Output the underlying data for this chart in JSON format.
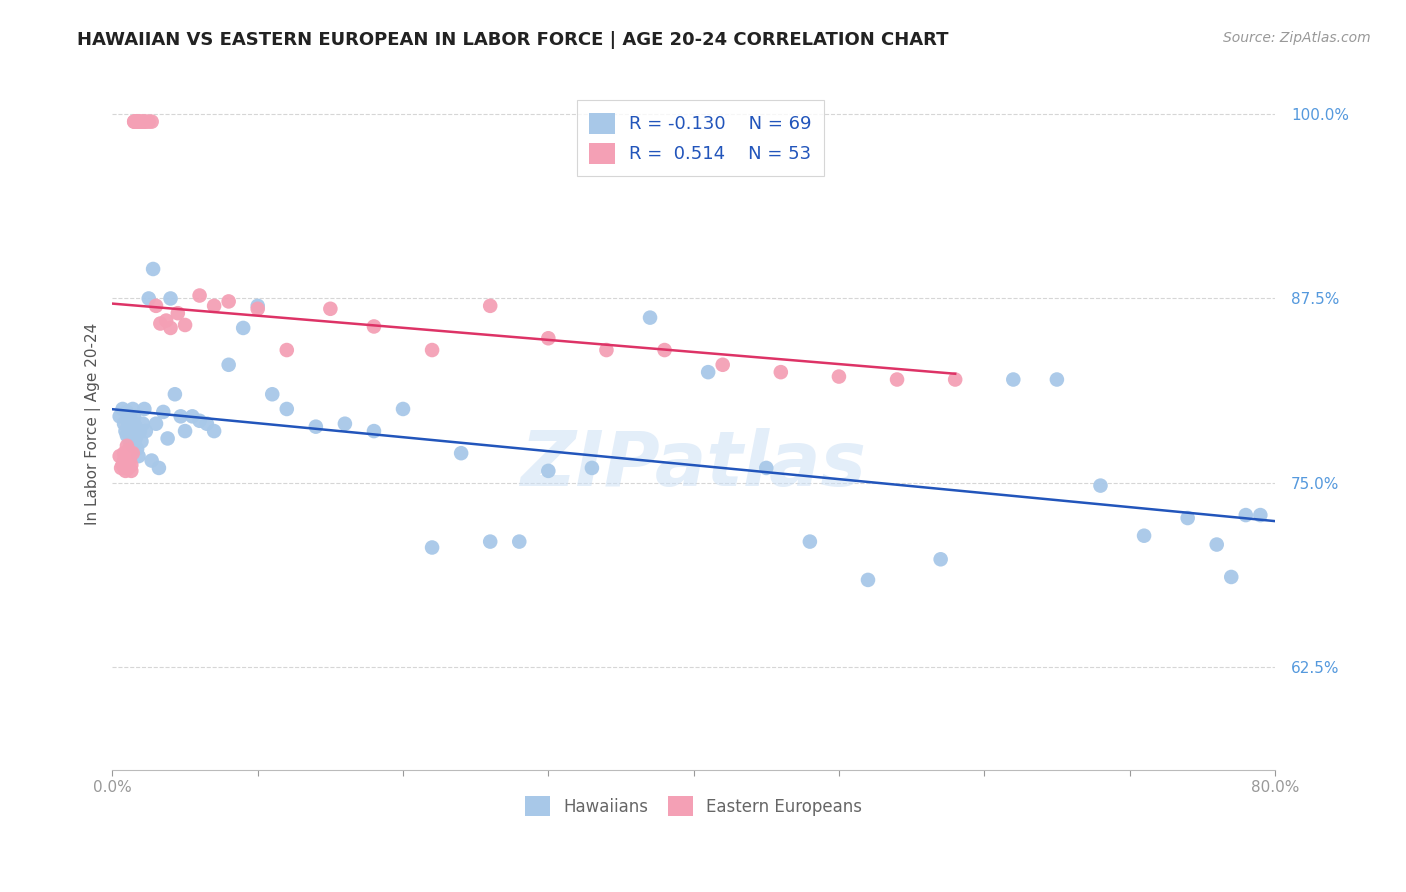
{
  "title": "HAWAIIAN VS EASTERN EUROPEAN IN LABOR FORCE | AGE 20-24 CORRELATION CHART",
  "source": "Source: ZipAtlas.com",
  "ylabel": "In Labor Force | Age 20-24",
  "x_min": 0.0,
  "x_max": 0.8,
  "y_min": 0.555,
  "y_max": 1.025,
  "x_ticks": [
    0.0,
    0.1,
    0.2,
    0.3,
    0.4,
    0.5,
    0.6,
    0.7,
    0.8
  ],
  "x_tick_labels": [
    "0.0%",
    "",
    "",
    "",
    "",
    "",
    "",
    "",
    "80.0%"
  ],
  "y_ticks": [
    0.625,
    0.75,
    0.875,
    1.0
  ],
  "y_tick_labels": [
    "62.5%",
    "75.0%",
    "87.5%",
    "100.0%"
  ],
  "hawaiian_color": "#a8c8e8",
  "eastern_color": "#f4a0b5",
  "hawaiian_line_color": "#2255bb",
  "eastern_line_color": "#dd3366",
  "background_color": "#ffffff",
  "grid_color": "#cccccc",
  "legend_R_hawaiian": "-0.130",
  "legend_N_hawaiian": "69",
  "legend_R_eastern": "0.514",
  "legend_N_eastern": "53",
  "watermark": "ZIPatlas",
  "hawaiian_x": [
    0.005,
    0.007,
    0.008,
    0.009,
    0.01,
    0.01,
    0.011,
    0.012,
    0.012,
    0.013,
    0.013,
    0.014,
    0.014,
    0.015,
    0.015,
    0.016,
    0.016,
    0.017,
    0.018,
    0.019,
    0.02,
    0.021,
    0.022,
    0.023,
    0.025,
    0.027,
    0.028,
    0.03,
    0.032,
    0.035,
    0.038,
    0.04,
    0.043,
    0.047,
    0.05,
    0.055,
    0.06,
    0.065,
    0.07,
    0.08,
    0.09,
    0.1,
    0.11,
    0.12,
    0.14,
    0.16,
    0.18,
    0.2,
    0.22,
    0.24,
    0.26,
    0.28,
    0.3,
    0.33,
    0.37,
    0.41,
    0.45,
    0.48,
    0.52,
    0.57,
    0.62,
    0.65,
    0.68,
    0.71,
    0.74,
    0.76,
    0.77,
    0.78,
    0.79
  ],
  "hawaiian_y": [
    0.795,
    0.8,
    0.79,
    0.785,
    0.782,
    0.798,
    0.79,
    0.778,
    0.795,
    0.785,
    0.792,
    0.8,
    0.775,
    0.79,
    0.795,
    0.788,
    0.78,
    0.773,
    0.768,
    0.785,
    0.778,
    0.79,
    0.8,
    0.785,
    0.875,
    0.765,
    0.895,
    0.79,
    0.76,
    0.798,
    0.78,
    0.875,
    0.81,
    0.795,
    0.785,
    0.795,
    0.792,
    0.79,
    0.785,
    0.83,
    0.855,
    0.87,
    0.81,
    0.8,
    0.788,
    0.79,
    0.785,
    0.8,
    0.706,
    0.77,
    0.71,
    0.71,
    0.758,
    0.76,
    0.862,
    0.825,
    0.76,
    0.71,
    0.684,
    0.698,
    0.82,
    0.82,
    0.748,
    0.714,
    0.726,
    0.708,
    0.686,
    0.728,
    0.728
  ],
  "eastern_x": [
    0.005,
    0.006,
    0.007,
    0.008,
    0.008,
    0.009,
    0.009,
    0.01,
    0.01,
    0.011,
    0.011,
    0.012,
    0.012,
    0.013,
    0.013,
    0.014,
    0.015,
    0.015,
    0.016,
    0.016,
    0.017,
    0.018,
    0.018,
    0.019,
    0.02,
    0.021,
    0.022,
    0.023,
    0.025,
    0.027,
    0.03,
    0.033,
    0.037,
    0.04,
    0.045,
    0.05,
    0.06,
    0.07,
    0.08,
    0.1,
    0.12,
    0.15,
    0.18,
    0.22,
    0.26,
    0.3,
    0.34,
    0.38,
    0.42,
    0.46,
    0.5,
    0.54,
    0.58
  ],
  "eastern_y": [
    0.768,
    0.76,
    0.762,
    0.77,
    0.765,
    0.758,
    0.76,
    0.775,
    0.768,
    0.772,
    0.76,
    0.765,
    0.77,
    0.762,
    0.758,
    0.77,
    0.995,
    0.995,
    0.995,
    0.995,
    0.995,
    0.995,
    0.995,
    0.995,
    0.995,
    0.995,
    0.995,
    0.995,
    0.995,
    0.995,
    0.87,
    0.858,
    0.86,
    0.855,
    0.865,
    0.857,
    0.877,
    0.87,
    0.873,
    0.868,
    0.84,
    0.868,
    0.856,
    0.84,
    0.87,
    0.848,
    0.84,
    0.84,
    0.83,
    0.825,
    0.822,
    0.82,
    0.82
  ],
  "title_fontsize": 13,
  "label_fontsize": 11,
  "tick_fontsize": 11,
  "source_fontsize": 10
}
